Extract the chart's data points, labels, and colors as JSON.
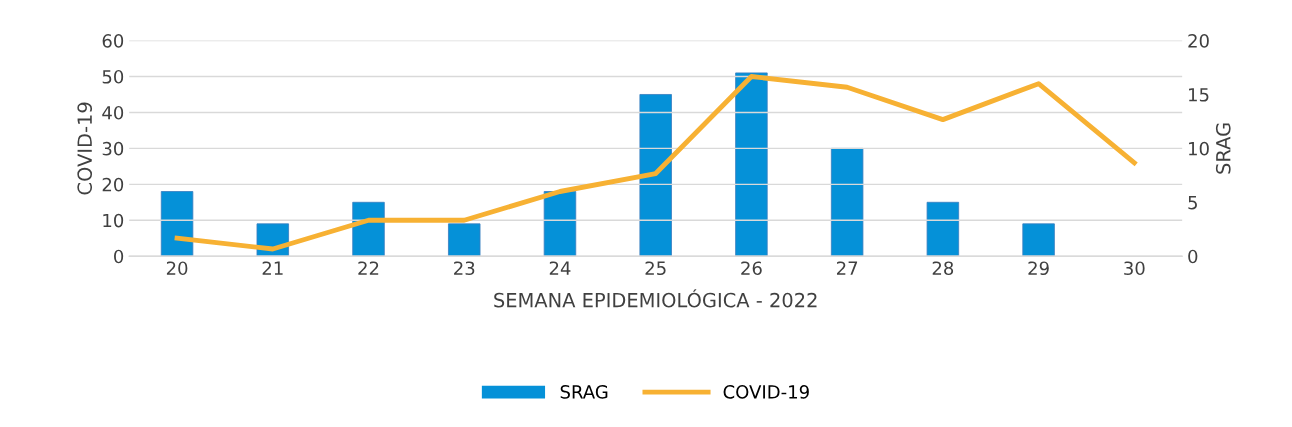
{
  "chart_data": {
    "type": "bar",
    "xlabel": "SEMANA EPIDEMIOLÓGICA - 2022",
    "ylabel": "COVID-19",
    "y2label": "SRAG",
    "categories": [
      "20",
      "21",
      "22",
      "23",
      "24",
      "25",
      "26",
      "27",
      "28",
      "29",
      "30"
    ],
    "series": [
      {
        "name": "SRAG",
        "axis": "y2",
        "color": "#0591d8",
        "values": [
          6,
          3,
          5,
          3,
          6,
          15,
          17,
          10,
          5,
          3,
          null
        ]
      },
      {
        "name": "COVID-19",
        "type": "line",
        "axis": "y",
        "color": "#f7b133",
        "values": [
          5,
          2,
          10,
          10,
          18,
          23,
          50,
          47,
          38,
          48,
          26
        ]
      }
    ],
    "ylim": [
      0,
      60
    ],
    "yticks": [
      0,
      10,
      20,
      30,
      40,
      50,
      60
    ],
    "y2lim": [
      0,
      20
    ],
    "y2ticks": [
      0,
      5,
      10,
      15,
      20
    ],
    "grid": "y",
    "legend": "bottom",
    "marker": "none",
    "line_style": "solid"
  }
}
